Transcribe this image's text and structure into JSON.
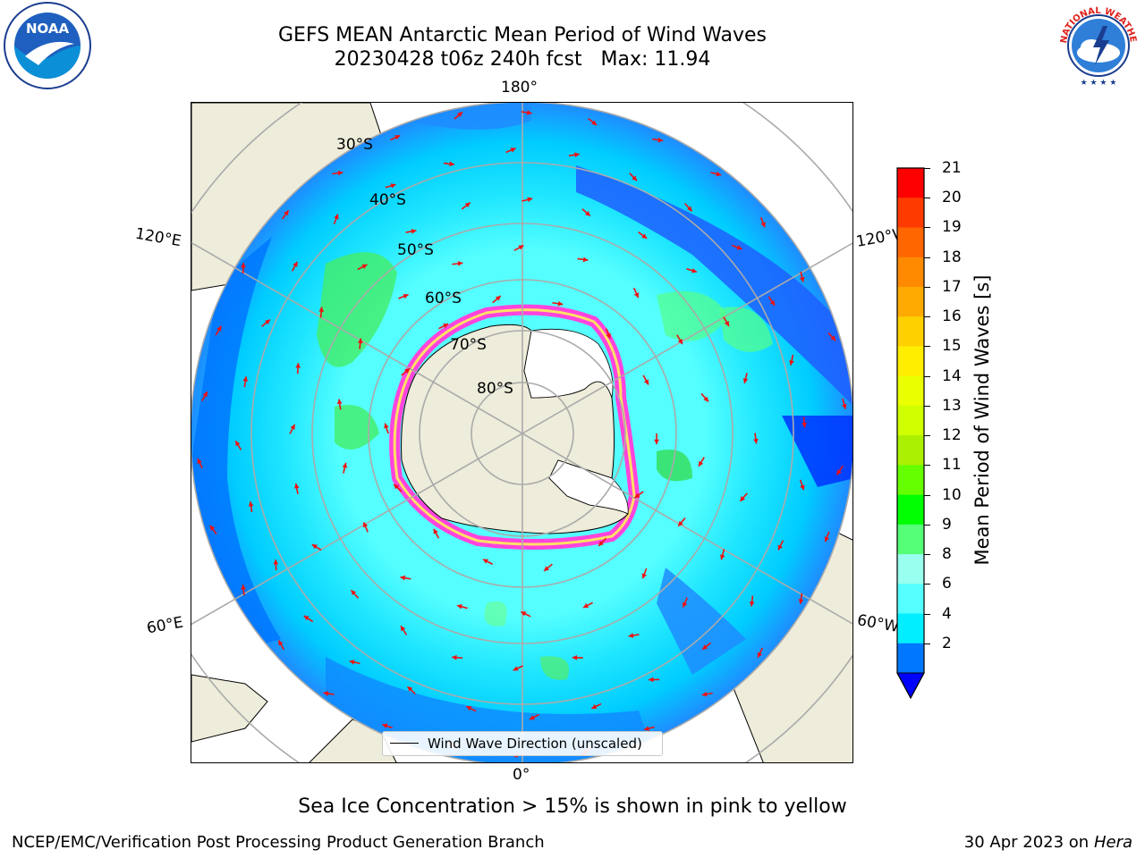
{
  "header": {
    "title_line1": "GEFS MEAN Antarctic Mean Period of Wind Waves",
    "title_line2": "20230428 t06z 240h fcst   Max: 11.94"
  },
  "logos": {
    "left": "NOAA",
    "right": "NATIONAL WEATHER SERVICE"
  },
  "map": {
    "lon_labels": {
      "top": "180°",
      "upper_left": "120°E",
      "upper_right": "120°W",
      "lower_left": "60°E",
      "lower_right": "60°W",
      "bottom": "0°"
    },
    "lat_labels": [
      "30°S",
      "40°S",
      "50°S",
      "60°S",
      "70°S",
      "80°S"
    ],
    "legend_label": "Wind Wave Direction (unscaled)"
  },
  "colorbar": {
    "label": "Mean Period of Wind Waves [s]",
    "ticks": [
      "21",
      "20",
      "19",
      "18",
      "17",
      "16",
      "15",
      "14",
      "13",
      "12",
      "11",
      "10",
      "9",
      "8",
      "6",
      "4",
      "2"
    ],
    "colors": [
      "#ff0000",
      "#ff3a00",
      "#ff6600",
      "#ff8a00",
      "#ffaa00",
      "#ffd000",
      "#ffee00",
      "#eaff00",
      "#d0ff00",
      "#aaf000",
      "#66ff00",
      "#00ff00",
      "#55ff77",
      "#99ffee",
      "#55ffff",
      "#00eeff",
      "#0077ff"
    ],
    "extend_color": "#0000ff"
  },
  "notes": {
    "sea_ice": "Sea Ice Concentration > 15% is shown in pink to yellow"
  },
  "footer": {
    "left": "NCEP/EMC/Verification Post Processing Product Generation Branch",
    "date": "30 Apr 2023 on ",
    "machine": "Hera"
  }
}
